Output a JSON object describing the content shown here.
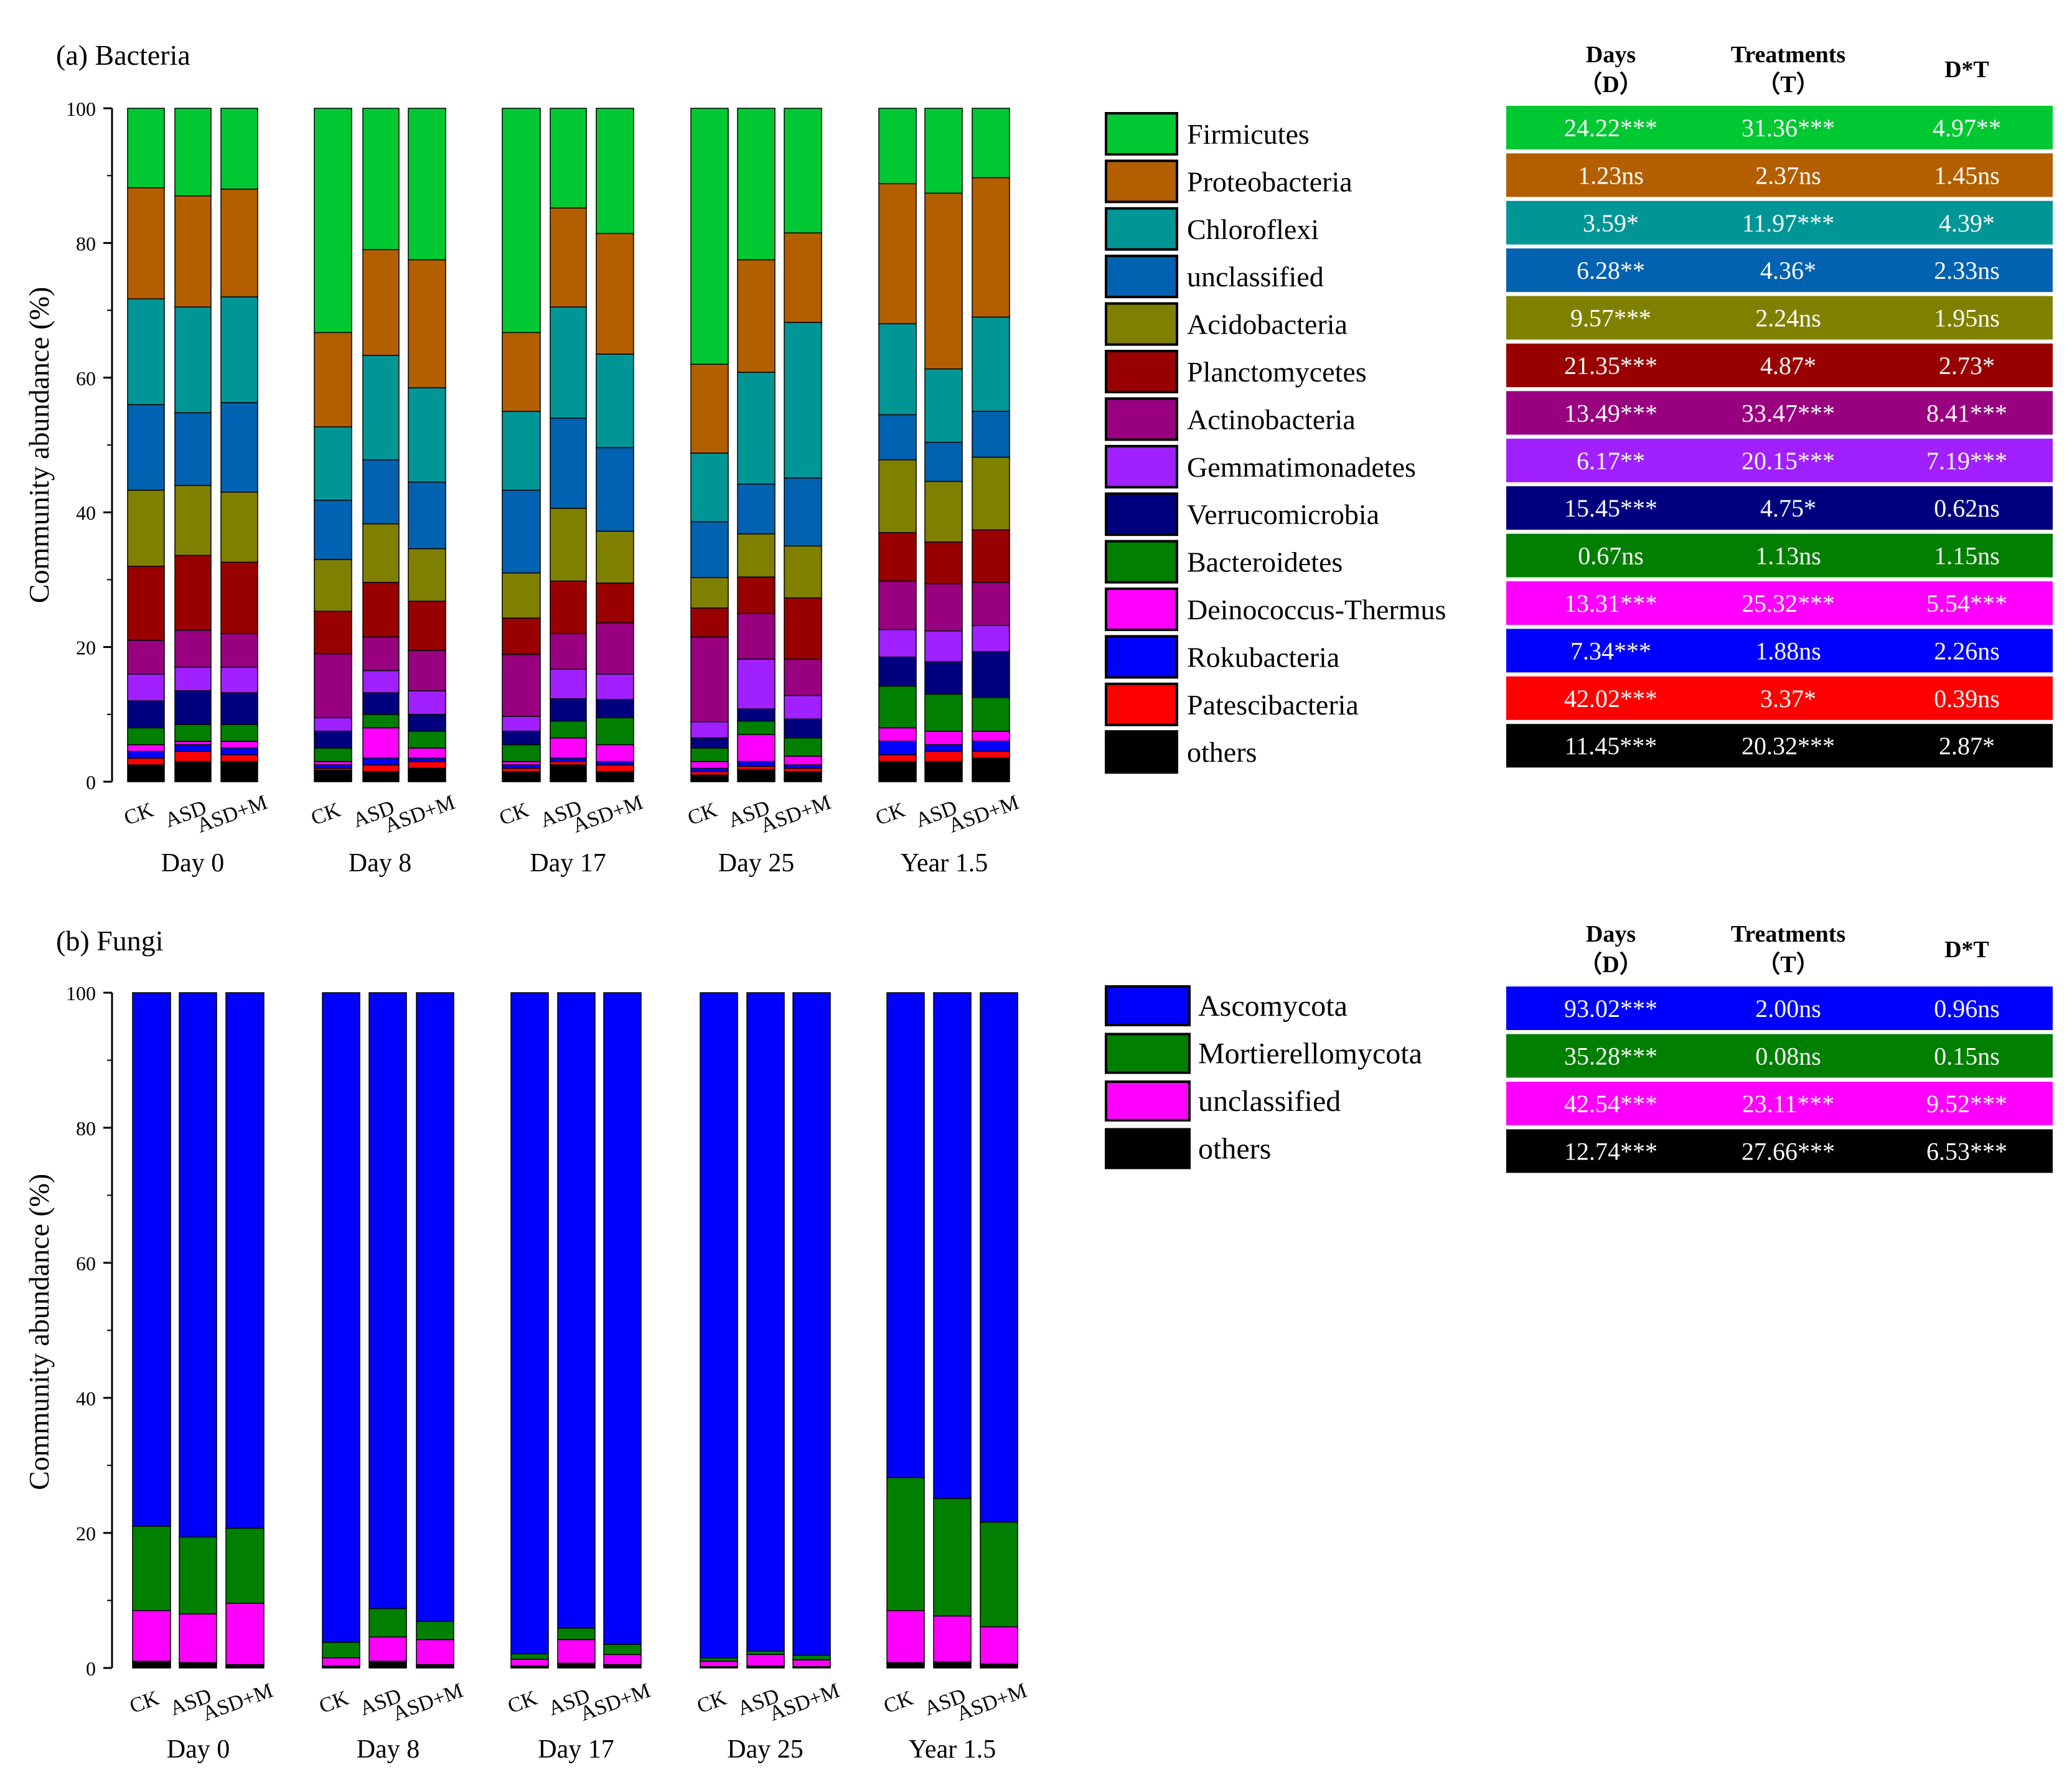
{
  "colors": {
    "Firmicutes": "#00c832",
    "Proteobacteria": "#b35f00",
    "Chloroflexi": "#009696",
    "unclassified": "#0062b0",
    "Acidobacteria": "#808000",
    "Planctomycetes": "#990000",
    "Actinobacteria": "#990080",
    "Gemmatimonadetes": "#a020ff",
    "Verrucomicrobia": "#00007f",
    "Bacteroidetes": "#007f00",
    "Deinococcus-Thermus": "#ff00ff",
    "Rokubacteria": "#0000ff",
    "Patescibacteria": "#ff0000",
    "others": "#000000",
    "Ascomycota": "#0000ff",
    "Mortierellomycota": "#007f00",
    "fungi_unclassified": "#ff00ff"
  },
  "chart_data": [
    {
      "id": "bacteria",
      "type": "bar",
      "stacked": true,
      "title": "(a) Bacteria",
      "ylabel": "Community abundance (%)",
      "ylim": [
        0,
        100
      ],
      "yticks": [
        "0",
        "20",
        "40",
        "60",
        "80",
        "100"
      ],
      "groups": [
        "Day 0",
        "Day 8",
        "Day 17",
        "Day 25",
        "Year 1.5"
      ],
      "categories": [
        "CK",
        "ASD",
        "ASD+M"
      ],
      "legend": [
        "Firmicutes",
        "Proteobacteria",
        "Chloroflexi",
        "unclassified",
        "Acidobacteria",
        "Planctomycetes",
        "Actinobacteria",
        "Gemmatimonadetes",
        "Verrucomicrobia",
        "Bacteroidetes",
        "Deinococcus-Thermus",
        "Rokubacteria",
        "Patescibacteria",
        "others"
      ],
      "stack_order": [
        "others",
        "Patescibacteria",
        "Rokubacteria",
        "Deinococcus-Thermus",
        "Bacteroidetes",
        "Verrucomicrobia",
        "Gemmatimonadetes",
        "Actinobacteria",
        "Planctomycetes",
        "Acidobacteria",
        "unclassified",
        "Chloroflexi",
        "Proteobacteria",
        "Firmicutes"
      ],
      "cumulative": [
        [
          2.5,
          3.5,
          4.5,
          5.5,
          8,
          12,
          16,
          21,
          32,
          43.3,
          56,
          71.7,
          88.2,
          100
        ],
        [
          3,
          4.5,
          5.5,
          6,
          8.5,
          13.5,
          17,
          22.5,
          33.6,
          44,
          54.8,
          70.5,
          87,
          100
        ],
        [
          3,
          4,
          5,
          6,
          8.5,
          13.2,
          17,
          22,
          32.6,
          43,
          56.3,
          72,
          88,
          100
        ],
        [
          1.7,
          2,
          2.5,
          3,
          5,
          7.5,
          9.5,
          19,
          25.3,
          33,
          41.8,
          52.7,
          66.7,
          100
        ],
        [
          1.5,
          2.5,
          3.5,
          8,
          10,
          13.2,
          16.5,
          21.5,
          29.6,
          38.3,
          47.8,
          63.3,
          79,
          100
        ],
        [
          2,
          3,
          3.5,
          5,
          7.5,
          10,
          13.5,
          19.5,
          26.8,
          34.6,
          44.5,
          58.5,
          77.5,
          100
        ],
        [
          1.5,
          2,
          2.5,
          3,
          5.5,
          7.5,
          9.7,
          18.9,
          24.3,
          31,
          43.3,
          55,
          66.7,
          100
        ],
        [
          2.5,
          3,
          3.5,
          6.5,
          9,
          12.3,
          16.7,
          22,
          29.8,
          40.6,
          54,
          70.5,
          85.2,
          100
        ],
        [
          1.5,
          2.5,
          3,
          5.5,
          9.5,
          12.2,
          16,
          23.6,
          29.5,
          37.2,
          49.6,
          63.5,
          81.4,
          100
        ],
        [
          1,
          1.5,
          2,
          3,
          5,
          6.5,
          8.9,
          21.5,
          25.8,
          30.3,
          38.6,
          48.8,
          62,
          100
        ],
        [
          1.8,
          2.3,
          3,
          7,
          9,
          10.8,
          18.2,
          25,
          30.4,
          36.8,
          44.2,
          60.8,
          77.5,
          100
        ],
        [
          1.5,
          2,
          2.5,
          3.8,
          6.5,
          9.3,
          12.8,
          18.2,
          27.3,
          35,
          45.1,
          68.2,
          81.5,
          100
        ],
        [
          3,
          4,
          6,
          8,
          14.2,
          18.5,
          22.6,
          29.8,
          37,
          47.8,
          54.5,
          68,
          88.8,
          100
        ],
        [
          3,
          4.5,
          5.5,
          7.5,
          13,
          17.8,
          22.4,
          29.4,
          35.6,
          44.6,
          50.4,
          61.3,
          87.4,
          100
        ],
        [
          3.5,
          4.5,
          6,
          7.5,
          12.5,
          19.3,
          23.2,
          29.6,
          37.4,
          48.2,
          55,
          69,
          89.7,
          100
        ]
      ]
    },
    {
      "id": "fungi",
      "type": "bar",
      "stacked": true,
      "title": "(b) Fungi",
      "ylabel": "Community abundance (%)",
      "ylim": [
        0,
        100
      ],
      "yticks": [
        "0",
        "20",
        "40",
        "60",
        "80",
        "100"
      ],
      "groups": [
        "Day 0",
        "Day 8",
        "Day 17",
        "Day 25",
        "Year 1.5"
      ],
      "categories": [
        "CK",
        "ASD",
        "ASD+M"
      ],
      "legend": [
        "Ascomycota",
        "Mortierellomycota",
        "unclassified",
        "others"
      ],
      "stack_order": [
        "others",
        "unclassified",
        "Mortierellomycota",
        "Ascomycota"
      ],
      "stack_color_keys": [
        "others",
        "fungi_unclassified",
        "Mortierellomycota",
        "Ascomycota"
      ],
      "cumulative": [
        [
          1,
          8.5,
          21,
          100
        ],
        [
          0.8,
          8,
          19.4,
          100
        ],
        [
          0.5,
          9.6,
          20.7,
          100
        ],
        [
          0.3,
          1.5,
          3.8,
          100
        ],
        [
          1,
          4.6,
          8.8,
          100
        ],
        [
          0.5,
          4.2,
          6.9,
          100
        ],
        [
          0.3,
          1.3,
          2.1,
          100
        ],
        [
          0.7,
          4.2,
          5.9,
          100
        ],
        [
          0.5,
          2,
          3.5,
          100
        ],
        [
          0.2,
          1,
          1.5,
          100
        ],
        [
          0.3,
          2,
          2.5,
          100
        ],
        [
          0.2,
          1.2,
          1.9,
          100
        ],
        [
          0.8,
          8.5,
          28.2,
          100
        ],
        [
          0.9,
          7.7,
          25.1,
          100
        ],
        [
          0.6,
          6.1,
          21.6,
          100
        ]
      ]
    }
  ],
  "stats_tables": {
    "bacteria": {
      "headers": [
        "Days\n(D)",
        "Treatments\n(T)",
        "D*T"
      ],
      "header_days": "Days",
      "header_days_sub": "（D）",
      "header_treat": "Treatments",
      "header_treat_sub": "（T）",
      "header_dt": "D*T",
      "rows": [
        [
          "24.22***",
          "31.36***",
          "4.97**"
        ],
        [
          "1.23ns",
          "2.37ns",
          "1.45ns"
        ],
        [
          "3.59*",
          "11.97***",
          "4.39*"
        ],
        [
          "6.28**",
          "4.36*",
          "2.33ns"
        ],
        [
          "9.57***",
          "2.24ns",
          "1.95ns"
        ],
        [
          "21.35***",
          "4.87*",
          "2.73*"
        ],
        [
          "13.49***",
          "33.47***",
          "8.41***"
        ],
        [
          "6.17**",
          "20.15***",
          "7.19***"
        ],
        [
          "15.45***",
          "4.75*",
          "0.62ns"
        ],
        [
          "0.67ns",
          "1.13ns",
          "1.15ns"
        ],
        [
          "13.31***",
          "25.32***",
          "5.54***"
        ],
        [
          "7.34***",
          "1.88ns",
          "2.26ns"
        ],
        [
          "42.02***",
          "3.37*",
          "0.39ns"
        ],
        [
          "11.45***",
          "20.32***",
          "2.87*"
        ]
      ]
    },
    "fungi": {
      "header_days": "Days",
      "header_days_sub": "（D）",
      "header_treat": "Treatments",
      "header_treat_sub": "（T）",
      "header_dt": "D*T",
      "rows": [
        [
          "93.02***",
          "2.00ns",
          "0.96ns"
        ],
        [
          "35.28***",
          "0.08ns",
          "0.15ns"
        ],
        [
          "42.54***",
          "23.11***",
          "9.52***"
        ],
        [
          "12.74***",
          "27.66***",
          "6.53***"
        ]
      ]
    }
  }
}
